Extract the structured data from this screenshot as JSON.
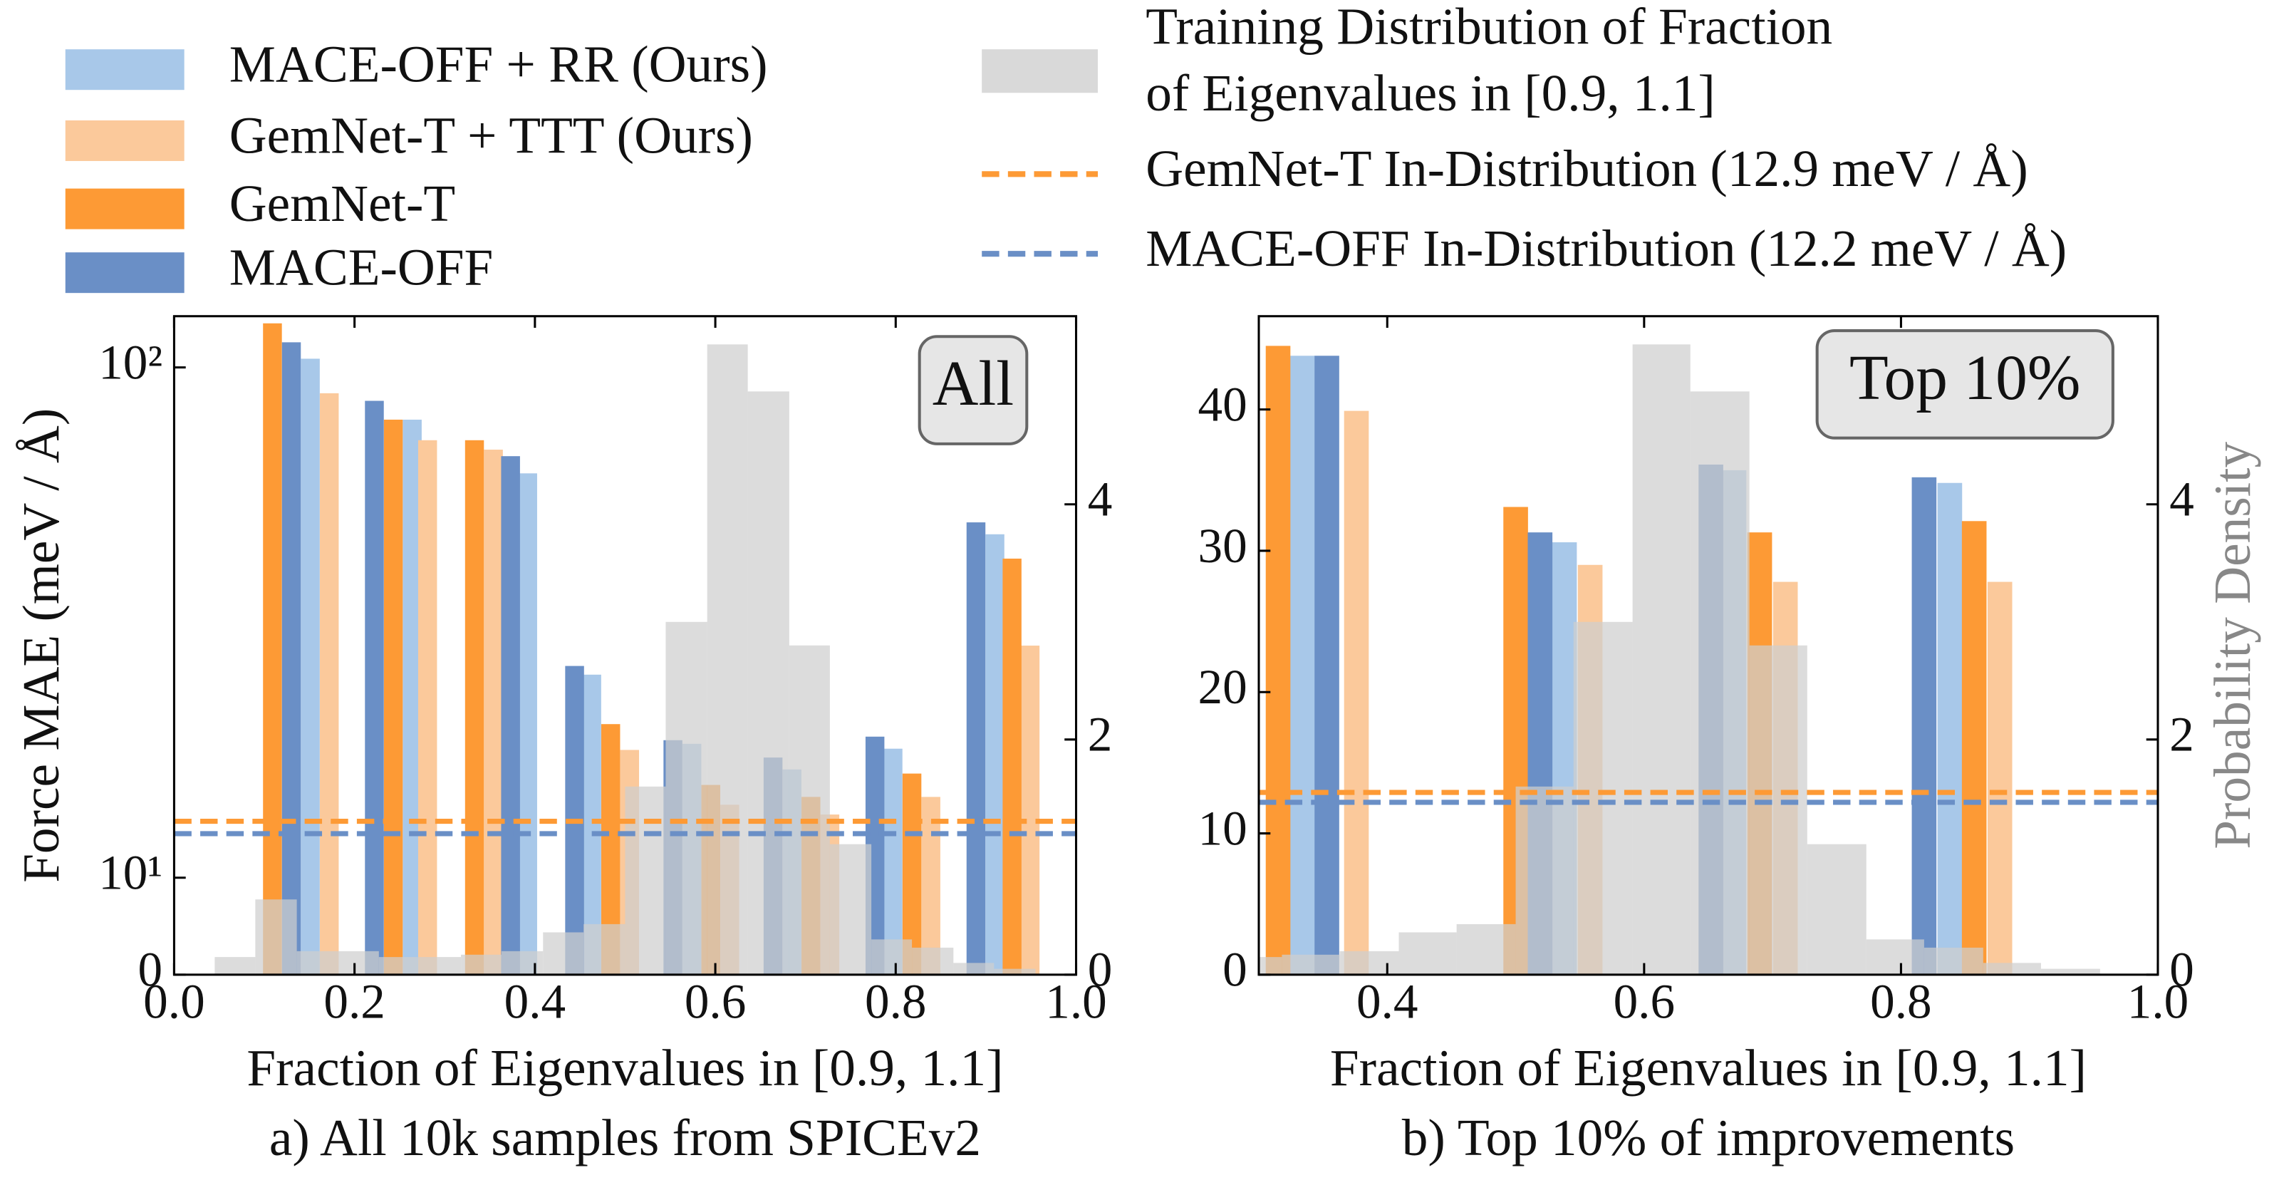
{
  "chart_data": [
    {
      "type": "bar",
      "xlabel": "Fraction of Eigenvalues in [0.9, 1.1]",
      "caption": "a) All 10k samples from SPICEv2",
      "ylabel": "Force MAE (meV / Å)",
      "annotation": "All",
      "xlim": [
        0,
        1
      ],
      "xticks": [
        {
          "value": 0,
          "label": "0.0"
        },
        0.2,
        0.4,
        0.6,
        0.8,
        {
          "value": 1,
          "label": "1.0"
        }
      ],
      "ylim": [
        0,
        126
      ],
      "yscale": "symlog",
      "linthresh": 10,
      "linscale": 0.19,
      "yticks": [
        0,
        {
          "value": 10,
          "label": "10¹"
        },
        {
          "value": 100,
          "label": "10²"
        }
      ],
      "y2lim": [
        0,
        5.6
      ],
      "y2ticks": [
        0,
        2,
        4
      ],
      "series": [
        {
          "name": "MACE-OFF + RR (Ours)",
          "color": "#a8c8e9",
          "x": [
            0.151,
            0.264,
            0.392,
            0.463,
            0.574,
            0.685,
            0.797,
            0.91
          ],
          "values": [
            104,
            79,
            62,
            25,
            18.3,
            16.3,
            17.9,
            47.1
          ]
        },
        {
          "name": "GemNet-T + TTT (Ours)",
          "color": "#fbc99b",
          "x": [
            0.172,
            0.281,
            0.354,
            0.505,
            0.616,
            0.727,
            0.839,
            0.949
          ],
          "values": [
            89,
            72,
            69,
            17.8,
            13.9,
            13.3,
            14.4,
            28.5
          ]
        },
        {
          "name": "GemNet-T",
          "color": "#fd9a35",
          "x": [
            0.109,
            0.243,
            0.333,
            0.484,
            0.595,
            0.706,
            0.818,
            0.929
          ],
          "values": [
            122,
            79,
            72,
            20,
            15.2,
            14.4,
            16.0,
            42.2
          ]
        },
        {
          "name": "MACE-OFF",
          "color": "#6a8fc6",
          "x": [
            0.13,
            0.222,
            0.373,
            0.444,
            0.553,
            0.664,
            0.777,
            0.889
          ],
          "values": [
            112,
            86,
            67,
            26,
            18.6,
            17.2,
            18.9,
            49.7
          ]
        }
      ],
      "histogram": {
        "name": [
          "Training Distribution of Fraction",
          "of Eigenvalues in [0.9, 1.1]"
        ],
        "color": "#cfcfcf",
        "axis": "y2",
        "bins": [
          0.045,
          0.09,
          0.136,
          0.181,
          0.227,
          0.272,
          0.318,
          0.363,
          0.409,
          0.454,
          0.5,
          0.545,
          0.591,
          0.636,
          0.682,
          0.727,
          0.773,
          0.818,
          0.864,
          0.909,
          0.955
        ],
        "counts": [
          0.15,
          0.64,
          0.2,
          0.2,
          0.15,
          0.15,
          0.17,
          0.2,
          0.36,
          0.43,
          1.6,
          3.0,
          5.36,
          4.96,
          2.8,
          1.11,
          0.3,
          0.23,
          0.1,
          0.05
        ]
      },
      "hlines": [
        {
          "name": "GemNet-T In-Distribution (12.9 meV / Å)",
          "value": 12.9,
          "color": "#fd9a35"
        },
        {
          "name": "MACE-OFF In-Distribution (12.2 meV / Å)",
          "value": 12.2,
          "color": "#6a8fc6"
        }
      ]
    },
    {
      "type": "bar",
      "xlabel": "Fraction of Eigenvalues in [0.9, 1.1]",
      "caption": "b) Top 10% of improvements",
      "y2label": "Probability Density",
      "annotation": "Top 10%",
      "xlim": [
        0.3,
        1
      ],
      "xticks": [
        0.4,
        0.6,
        0.8,
        {
          "value": 1,
          "label": "1.0"
        }
      ],
      "ylim": [
        0,
        46.6
      ],
      "yticks": [
        0,
        10,
        20,
        30,
        40
      ],
      "y2lim": [
        0,
        5.6
      ],
      "y2ticks": [
        0,
        2,
        4
      ],
      "series": [
        {
          "color": "#a8c8e9",
          "x": [
            0.334,
            0.538,
            0.67,
            0.838
          ],
          "values": [
            43.8,
            30.6,
            35.7,
            34.8
          ]
        },
        {
          "color": "#fbc99b",
          "x": [
            0.376,
            0.558,
            0.71,
            0.877
          ],
          "values": [
            39.9,
            29.0,
            27.8,
            27.8
          ]
        },
        {
          "color": "#fd9a35",
          "x": [
            0.315,
            0.5,
            0.69,
            0.857
          ],
          "values": [
            44.5,
            33.1,
            31.3,
            32.1
          ]
        },
        {
          "color": "#6a8fc6",
          "x": [
            0.353,
            0.519,
            0.652,
            0.818
          ],
          "values": [
            43.8,
            31.3,
            36.1,
            35.2
          ]
        }
      ],
      "histogram": {
        "color": "#cfcfcf",
        "axis": "y2",
        "bins": [
          0.045,
          0.09,
          0.136,
          0.181,
          0.227,
          0.272,
          0.318,
          0.363,
          0.409,
          0.454,
          0.5,
          0.545,
          0.591,
          0.636,
          0.682,
          0.727,
          0.773,
          0.818,
          0.864,
          0.909,
          0.955
        ],
        "counts": [
          0.15,
          0.64,
          0.2,
          0.2,
          0.15,
          0.15,
          0.17,
          0.2,
          0.36,
          0.43,
          1.6,
          3.0,
          5.36,
          4.96,
          2.8,
          1.11,
          0.3,
          0.23,
          0.1,
          0.05
        ]
      },
      "hlines": [
        {
          "value": 12.9,
          "color": "#fd9a35"
        },
        {
          "value": 12.2,
          "color": "#6a8fc6"
        }
      ]
    }
  ]
}
